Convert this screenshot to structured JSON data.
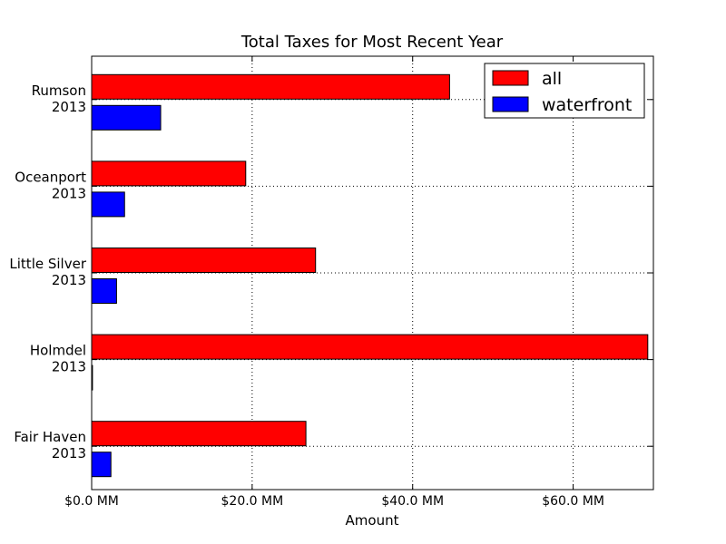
{
  "chart_data": {
    "type": "bar",
    "orientation": "horizontal",
    "title": "Total Taxes for Most Recent Year",
    "xlabel": "Amount",
    "ylabel": "",
    "categories": [
      "Fair Haven\n2013",
      "Holmdel\n2013",
      "Little Silver\n2013",
      "Oceanport\n2013",
      "Rumson\n2013"
    ],
    "series": [
      {
        "name": "all",
        "color": "#ff0000",
        "values": [
          26.7,
          69.3,
          27.9,
          19.2,
          44.6
        ]
      },
      {
        "name": "waterfront",
        "color": "#0000ff",
        "values": [
          2.4,
          0.0,
          3.1,
          4.1,
          8.6
        ]
      }
    ],
    "xlim": [
      0,
      70
    ],
    "xticks": [
      0,
      20,
      40,
      60
    ],
    "xtick_labels": [
      "$0.0 MM",
      "$20.0 MM",
      "$40.0 MM",
      "$60.0 MM"
    ],
    "grid": true,
    "legend_position": "top-right"
  }
}
